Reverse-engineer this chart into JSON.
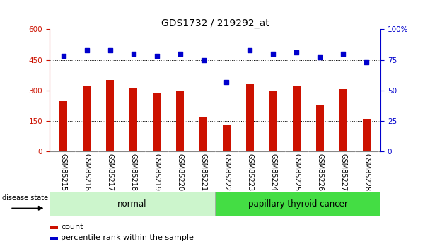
{
  "title": "GDS1732 / 219292_at",
  "categories": [
    "GSM85215",
    "GSM85216",
    "GSM85217",
    "GSM85218",
    "GSM85219",
    "GSM85220",
    "GSM85221",
    "GSM85222",
    "GSM85223",
    "GSM85224",
    "GSM85225",
    "GSM85226",
    "GSM85227",
    "GSM85228"
  ],
  "counts": [
    245,
    320,
    350,
    310,
    285,
    300,
    165,
    130,
    330,
    295,
    320,
    225,
    305,
    160
  ],
  "percentile": [
    78,
    83,
    83,
    80,
    78,
    80,
    75,
    57,
    83,
    80,
    81,
    77,
    80,
    73
  ],
  "group_labels": [
    "normal",
    "papillary thyroid cancer"
  ],
  "bar_color": "#cc1100",
  "dot_color": "#0000cc",
  "left_yticks": [
    0,
    150,
    300,
    450,
    600
  ],
  "right_yticks": [
    0,
    25,
    50,
    75,
    100
  ],
  "ylim_left": [
    0,
    600
  ],
  "ylim_right": [
    0,
    100
  ],
  "disease_state_label": "disease state",
  "legend_count_label": "count",
  "legend_pct_label": "percentile rank within the sample",
  "bg_color": "#ffffff",
  "tick_label_area_color": "#c8c8c8",
  "normal_color": "#ccf5cc",
  "cancer_color": "#44dd44",
  "grid_color": "#000000",
  "title_fontsize": 10,
  "tick_fontsize": 7.5,
  "label_fontsize": 7,
  "group_fontsize": 8.5
}
